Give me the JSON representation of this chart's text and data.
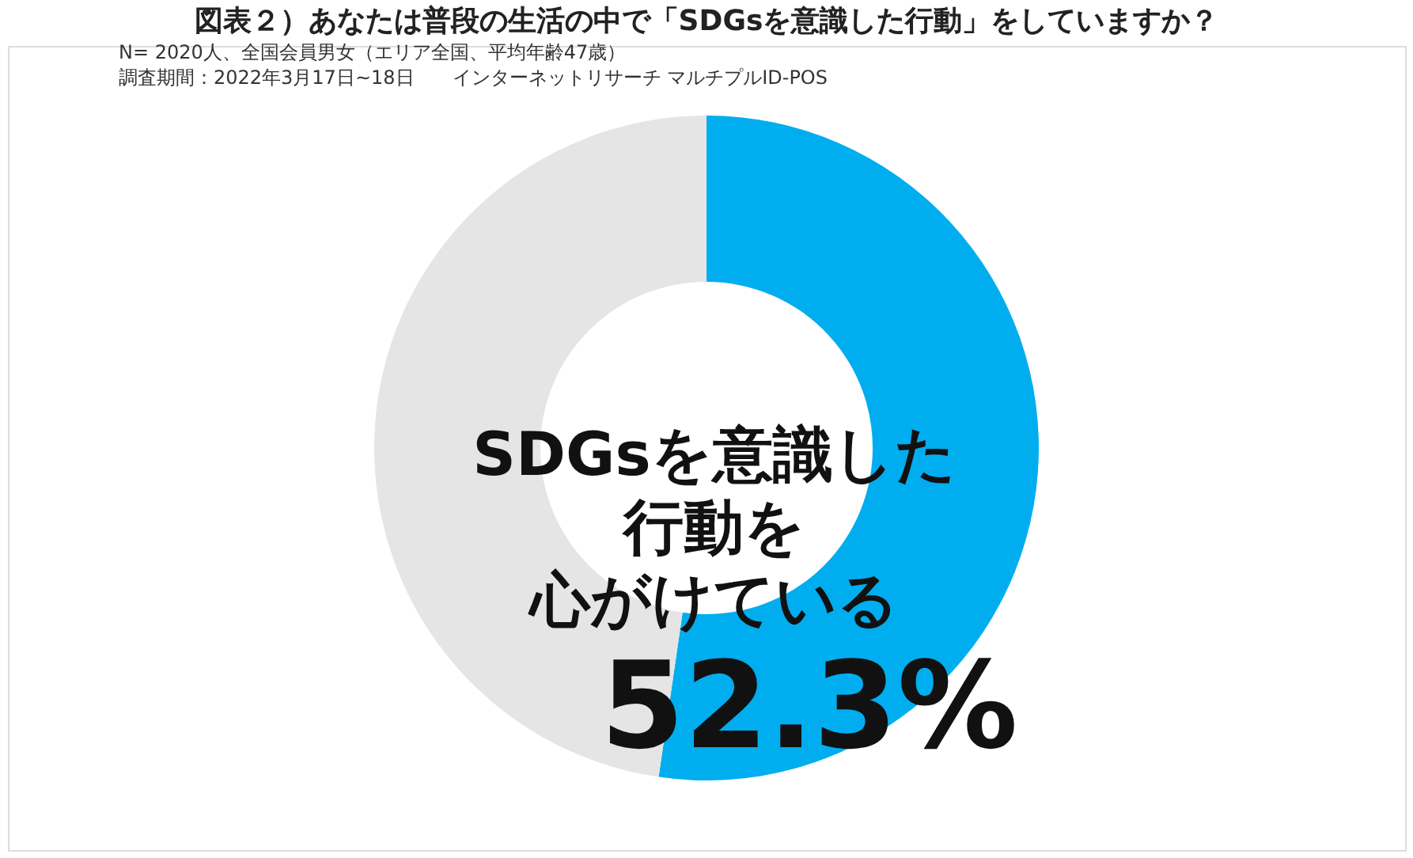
{
  "chart_data": {
    "type": "donut",
    "title": "図表２）あなたは普段の生活の中で「SDGsを意識した行動」をしていますか？",
    "annotations": [
      "N= 2020人、全国会員男女（エリア全国、平均年齢47歳）",
      "調査期間：2022年3月17日~18日　　インターネットリサーチ マルチプルID-POS"
    ],
    "categories": [
      "SDGsを意識した行動を心がけている",
      null
    ],
    "values": [
      52.3,
      47.7
    ],
    "colors": [
      "#00aeef",
      "#e5e5e5"
    ],
    "value_labels": [
      "52.3%",
      null
    ]
  }
}
